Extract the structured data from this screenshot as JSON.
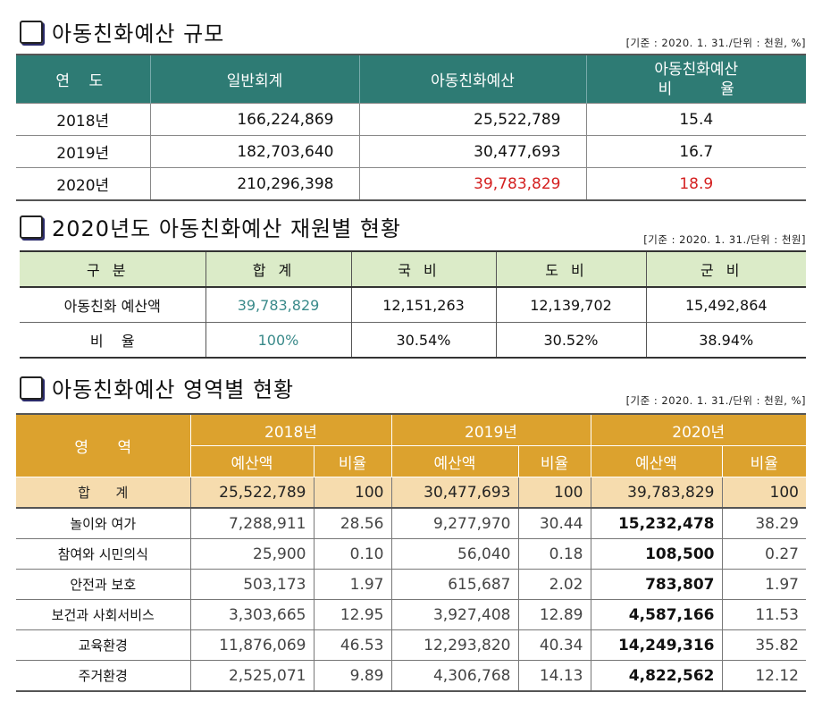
{
  "s1": {
    "title": "아동친화예산 규모",
    "note": "[기준 : 2020. 1. 31./단위 : 천원, %]",
    "headers": [
      "연  도",
      "일반회계",
      "아동친화예산",
      "아동친화예산",
      "비          율"
    ],
    "rows": [
      [
        "2018년",
        "166,224,869",
        "25,522,789",
        "15.4"
      ],
      [
        "2019년",
        "182,703,640",
        "30,477,693",
        "16.7"
      ],
      [
        "2020년",
        "210,296,398",
        "39,783,829",
        "18.9"
      ]
    ],
    "highlight_color": "#d42020"
  },
  "s2": {
    "title": "2020년도 아동친화예산 재원별 현황",
    "note": "[기준 : 2020. 1. 31./단위 : 천원]",
    "headers": [
      "구분",
      "합계",
      "국비",
      "도비",
      "군비"
    ],
    "rows": [
      [
        "아동친화 예산액",
        "39,783,829",
        "12,151,263",
        "12,139,702",
        "15,492,864"
      ],
      [
        "비    율",
        "100%",
        "30.54%",
        "30.52%",
        "38.94%"
      ]
    ],
    "total_color": "#3a8a8a"
  },
  "s3": {
    "title": "아동친화예산 영역별 현황",
    "note": "[기준 : 2020. 1. 31./단위 : 천원, %]",
    "area_header": "영      역",
    "years": [
      "2018년",
      "2019년",
      "2020년"
    ],
    "sub": [
      "예산액",
      "비율"
    ],
    "total": [
      "합      계",
      "25,522,789",
      "100",
      "30,477,693",
      "100",
      "39,783,829",
      "100"
    ],
    "rows": [
      [
        "놀이와 여가",
        "7,288,911",
        "28.56",
        "9,277,970",
        "30.44",
        "15,232,478",
        "38.29"
      ],
      [
        "참여와 시민의식",
        "25,900",
        "0.10",
        "56,040",
        "0.18",
        "108,500",
        "0.27"
      ],
      [
        "안전과 보호",
        "503,173",
        "1.97",
        "615,687",
        "2.02",
        "783,807",
        "1.97"
      ],
      [
        "보건과 사회서비스",
        "3,303,665",
        "12.95",
        "3,927,408",
        "12.89",
        "4,587,166",
        "11.53"
      ],
      [
        "교육환경",
        "11,876,069",
        "46.53",
        "12,293,820",
        "40.34",
        "14,249,316",
        "35.82"
      ],
      [
        "주거환경",
        "2,525,071",
        "9.89",
        "4,306,768",
        "14.13",
        "4,822,562",
        "12.12"
      ]
    ]
  }
}
